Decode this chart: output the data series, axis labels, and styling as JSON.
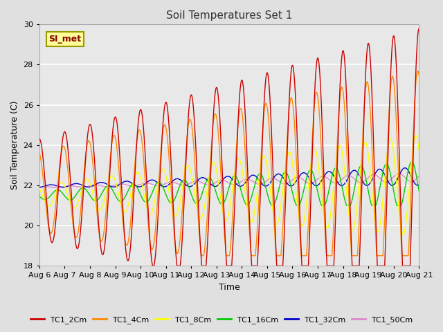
{
  "title": "Soil Temperatures Set 1",
  "xlabel": "Time",
  "ylabel": "Soil Temperature (C)",
  "ylim": [
    18,
    30
  ],
  "xlim": [
    0,
    360
  ],
  "fig_bg_color": "#e0e0e0",
  "plot_bg_color": "#e8e8e8",
  "grid_color": "#ffffff",
  "series_colors": {
    "TC1_2Cm": "#cc0000",
    "TC1_4Cm": "#ff8800",
    "TC1_8Cm": "#ffff00",
    "TC1_16Cm": "#00cc00",
    "TC1_32Cm": "#0000cc",
    "TC1_50Cm": "#dd88cc"
  },
  "legend_label": "SI_met",
  "legend_box_color": "#ffff99",
  "legend_box_edge": "#999900",
  "tick_labels": [
    "Aug 6",
    "Aug 7",
    "Aug 8",
    "Aug 9",
    "Aug 10",
    "Aug 11",
    "Aug 12",
    "Aug 13",
    "Aug 14",
    "Aug 15",
    "Aug 16",
    "Aug 17",
    "Aug 18",
    "Aug 19",
    "Aug 20",
    "Aug 21"
  ],
  "tick_positions": [
    0,
    24,
    48,
    72,
    96,
    120,
    144,
    168,
    192,
    216,
    240,
    264,
    288,
    312,
    336,
    360
  ]
}
